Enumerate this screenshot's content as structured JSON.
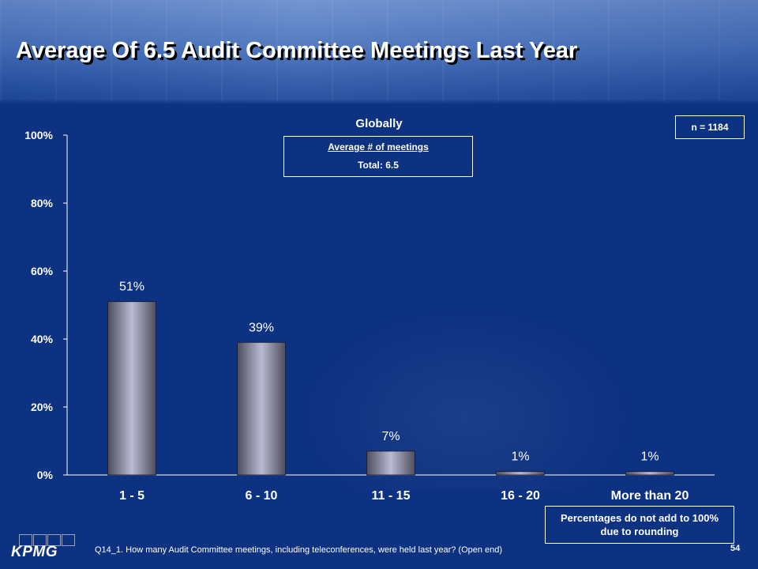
{
  "slide": {
    "title": "Average Of 6.5 Audit Committee Meetings Last Year",
    "subtitle": "Globally",
    "average_box": {
      "label": "Average # of meetings",
      "value": "Total: 6.5"
    },
    "sample_size": "n = 1184",
    "note": "Percentages do not add to 100% due to rounding",
    "logo_text": "KPMG",
    "question": "Q14_1. How many Audit Committee meetings, including teleconferences, were held last year? (Open end)",
    "page_number": "54"
  },
  "colors": {
    "background": "#0d3281",
    "bar_dark": "#4d4d5c",
    "bar_light": "#b9bbd3",
    "text": "#ffffff"
  },
  "chart_data": {
    "type": "bar",
    "categories": [
      "1 - 5",
      "6 - 10",
      "11 - 15",
      "16 - 20",
      "More than 20"
    ],
    "values": [
      51,
      39,
      7,
      1,
      1
    ],
    "data_labels": [
      "51%",
      "39%",
      "7%",
      "1%",
      "1%"
    ],
    "y_ticks": [
      0,
      20,
      40,
      60,
      80,
      100
    ],
    "y_tick_labels": [
      "0%",
      "20%",
      "40%",
      "60%",
      "80%",
      "100%"
    ],
    "ylim": [
      0,
      100
    ],
    "grid": false,
    "legend": "none"
  }
}
